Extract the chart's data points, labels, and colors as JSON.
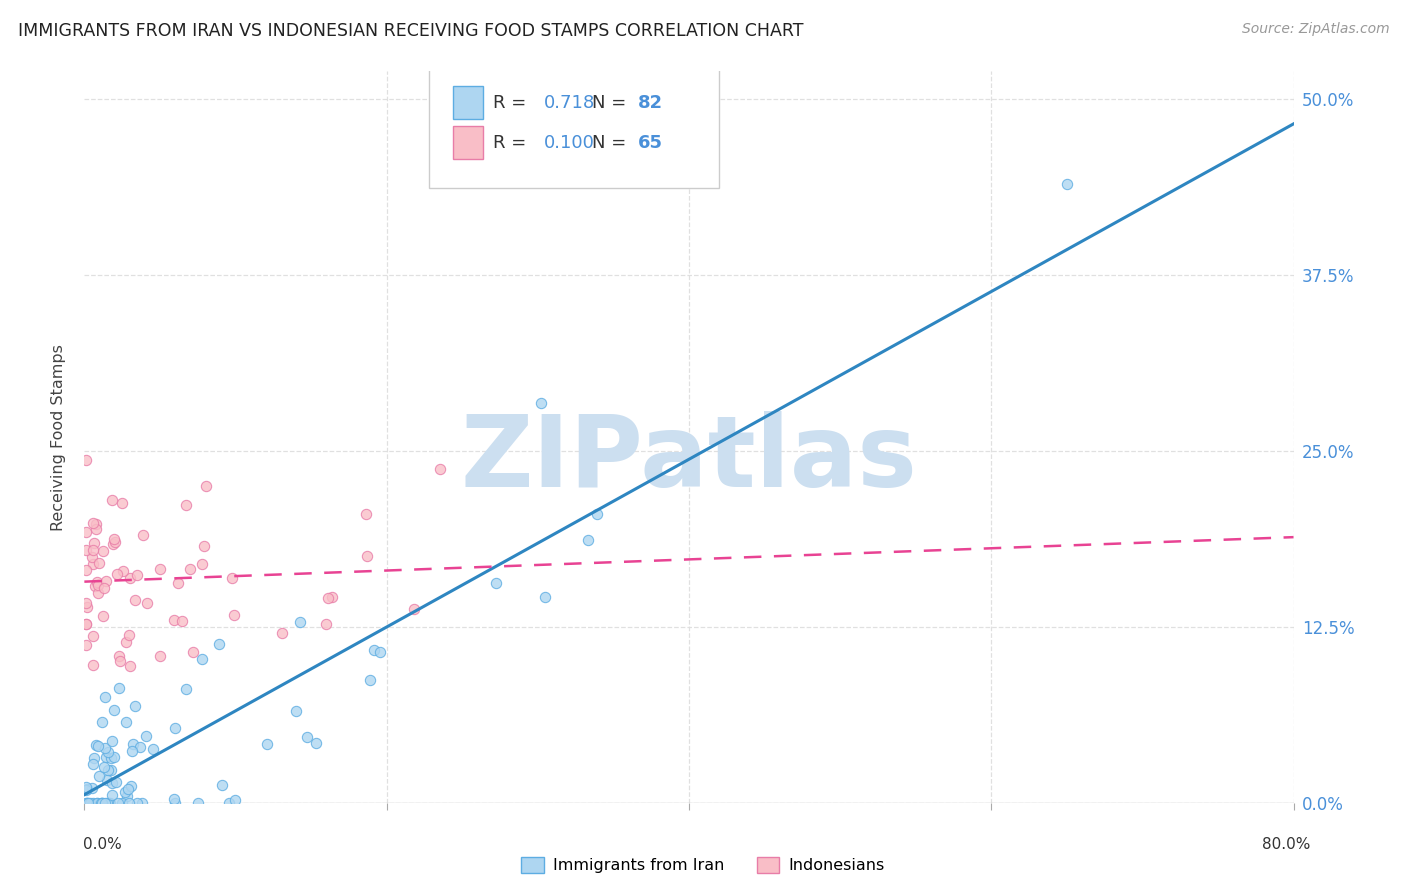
{
  "title": "IMMIGRANTS FROM IRAN VS INDONESIAN RECEIVING FOOD STAMPS CORRELATION CHART",
  "source": "Source: ZipAtlas.com",
  "ylabel": "Receiving Food Stamps",
  "ytick_values": [
    0.0,
    12.5,
    25.0,
    37.5,
    50.0
  ],
  "xlim": [
    0.0,
    80.0
  ],
  "ylim": [
    0.0,
    52.0
  ],
  "legend_label1": "Immigrants from Iran",
  "legend_label2": "Indonesians",
  "R1": 0.718,
  "N1": 82,
  "R2": 0.1,
  "N2": 65,
  "color_iran_fill": "#AED6F1",
  "color_iran_edge": "#5DADE2",
  "color_iran_line": "#2E86C1",
  "color_indo_fill": "#F9BEC7",
  "color_indo_edge": "#E87DA8",
  "color_indo_line": "#E84393",
  "watermark": "ZIPatlas",
  "watermark_color": "#CCDFF0",
  "background_color": "#ffffff",
  "grid_color": "#DDDDDD",
  "title_color": "#222222",
  "source_color": "#999999",
  "tick_label_color": "#4A90D9"
}
